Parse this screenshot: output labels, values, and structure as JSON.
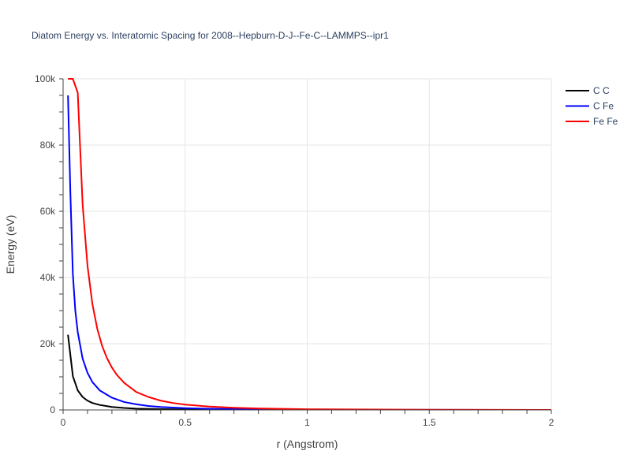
{
  "chart_data": {
    "type": "line",
    "title": "Diatom Energy vs. Interatomic Spacing for 2008--Hepburn-D-J--Fe-C--LAMMPS--ipr1",
    "xlabel": "r (Angstrom)",
    "ylabel": "Energy (eV)",
    "xlim": [
      0,
      2
    ],
    "ylim": [
      0,
      100000
    ],
    "x_ticks": [
      0,
      0.5,
      1,
      1.5,
      2
    ],
    "x_tick_labels": [
      "0",
      "0.5",
      "1",
      "1.5",
      "2"
    ],
    "y_ticks": [
      0,
      20000,
      40000,
      60000,
      80000,
      100000
    ],
    "y_tick_labels": [
      "0",
      "20k",
      "40k",
      "60k",
      "80k",
      "100k"
    ],
    "grid": true,
    "legend_position": "top-right",
    "series": [
      {
        "name": "C C",
        "color": "#000000",
        "x": [
          0.02,
          0.04,
          0.06,
          0.08,
          0.1,
          0.12,
          0.15,
          0.2,
          0.25,
          0.3,
          0.4,
          0.5,
          0.7,
          1.0,
          1.5,
          2.0
        ],
        "y": [
          22700,
          10200,
          5900,
          3900,
          2800,
          2100,
          1500,
          900,
          600,
          400,
          250,
          150,
          80,
          30,
          0,
          0
        ]
      },
      {
        "name": "C Fe",
        "color": "#0000ff",
        "x": [
          0.02,
          0.03,
          0.04,
          0.05,
          0.06,
          0.08,
          0.1,
          0.12,
          0.15,
          0.2,
          0.25,
          0.3,
          0.35,
          0.4,
          0.5,
          0.6,
          0.8,
          1.0,
          1.5,
          2.0
        ],
        "y": [
          95000,
          65000,
          41000,
          30000,
          23500,
          15500,
          11200,
          8400,
          5900,
          3700,
          2400,
          1700,
          1200,
          900,
          550,
          350,
          180,
          100,
          20,
          0
        ]
      },
      {
        "name": "Fe Fe",
        "color": "#ff0000",
        "x": [
          0.02,
          0.04,
          0.06,
          0.08,
          0.1,
          0.12,
          0.14,
          0.16,
          0.18,
          0.2,
          0.22,
          0.25,
          0.3,
          0.35,
          0.4,
          0.45,
          0.5,
          0.6,
          0.7,
          0.8,
          1.0,
          1.5,
          2.0
        ],
        "y": [
          100000,
          100000,
          95800,
          62000,
          43500,
          32000,
          24500,
          19300,
          15600,
          12800,
          10600,
          8200,
          5400,
          3900,
          2800,
          2100,
          1600,
          1000,
          650,
          450,
          220,
          60,
          10
        ]
      }
    ]
  }
}
